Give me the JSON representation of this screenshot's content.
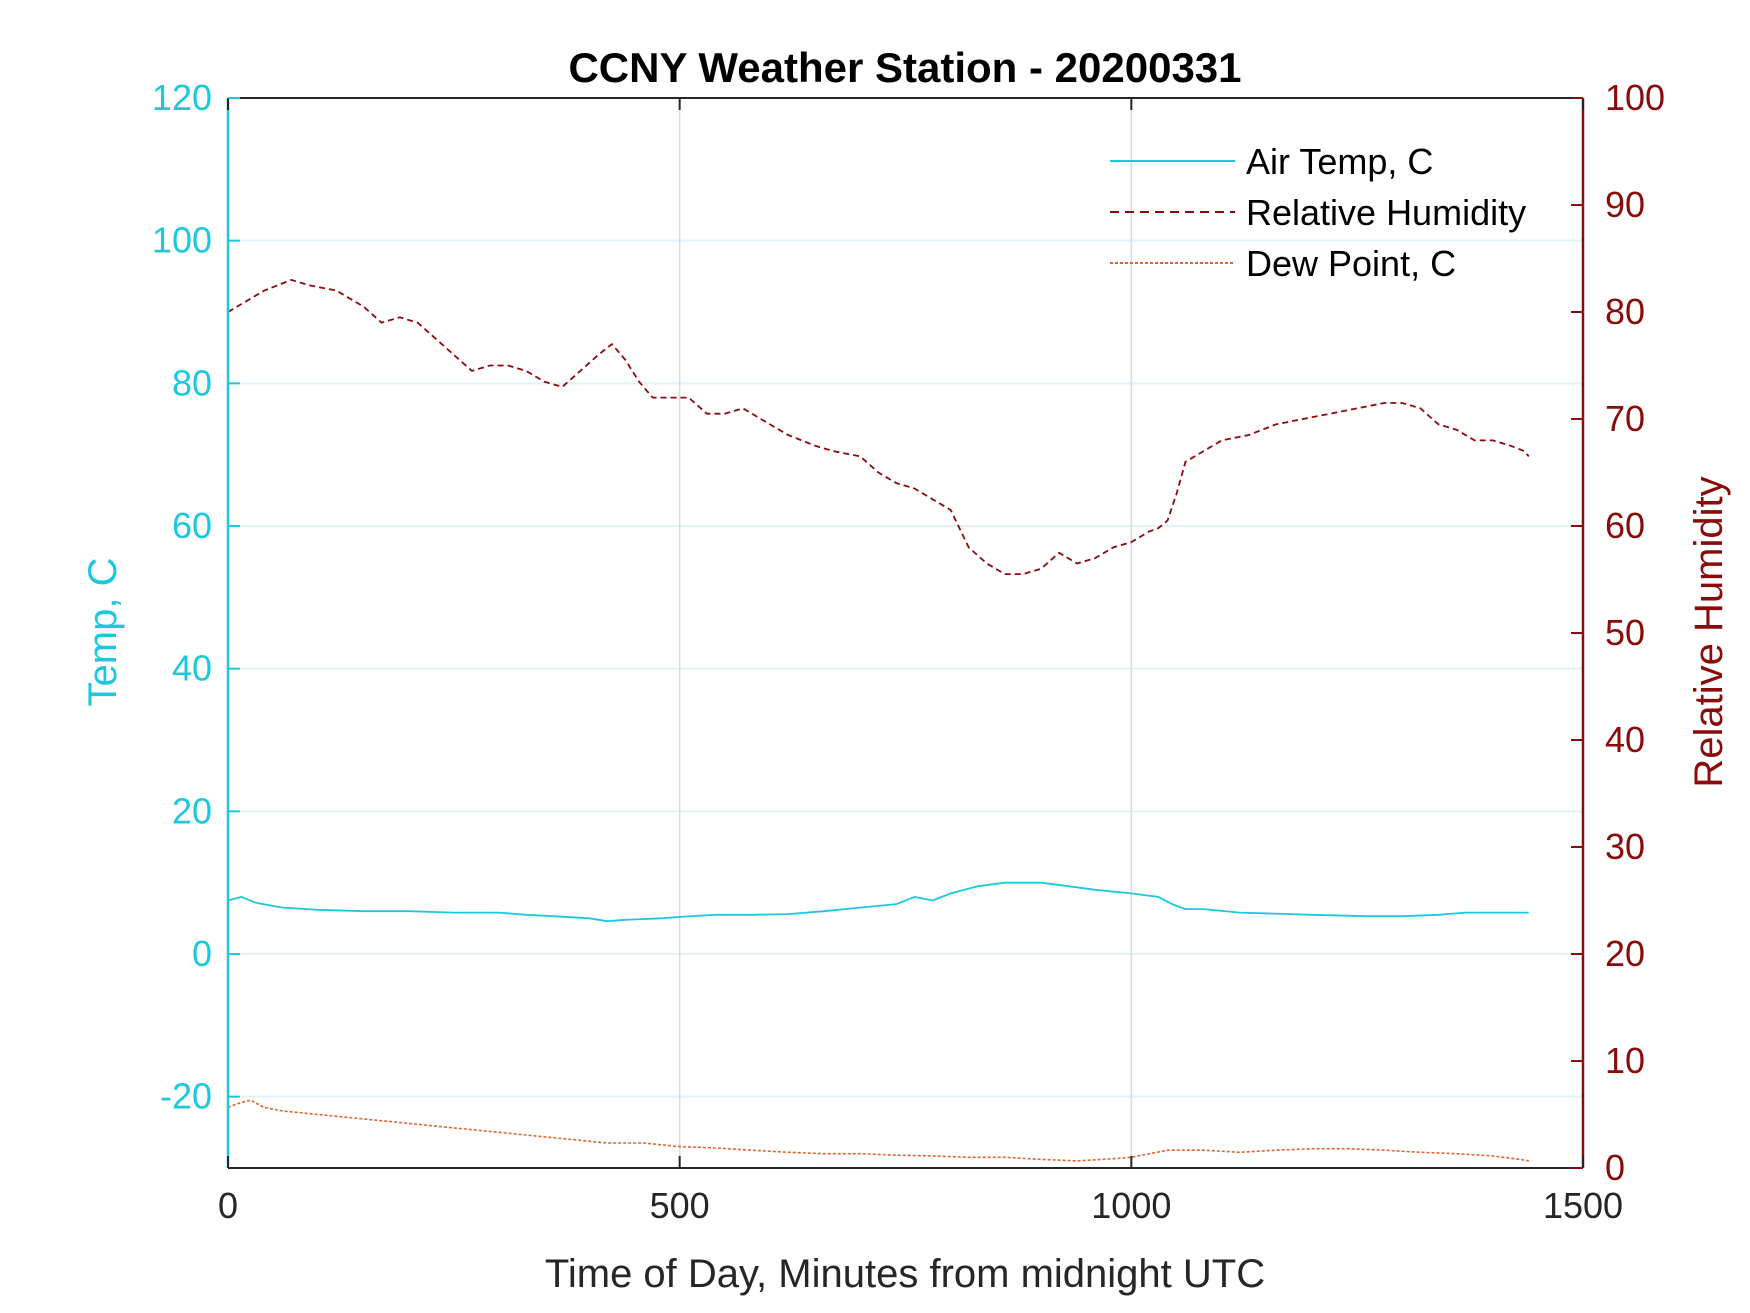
{
  "chart_data": {
    "type": "line",
    "title": "CCNY Weather Station - 20200331",
    "xlabel": "Time of Day, Minutes from midnight UTC",
    "ylabel_left": "Temp, C",
    "ylabel_right": "Relative Humidity",
    "xlim": [
      0,
      1500
    ],
    "ylim_left": [
      -30,
      120
    ],
    "ylim_right": [
      0,
      100
    ],
    "x_ticks": [
      "0",
      "500",
      "1000",
      "1500"
    ],
    "y_ticks_left": [
      "-20",
      "0",
      "20",
      "40",
      "60",
      "80",
      "100",
      "120"
    ],
    "y_ticks_right": [
      "0",
      "10",
      "20",
      "30",
      "40",
      "50",
      "60",
      "70",
      "80",
      "90",
      "100"
    ],
    "legend_position": "top-right",
    "colors": {
      "temp": "#1ec8dc",
      "humidity": "#8b0a0a",
      "dewpoint": "#e0652d",
      "axis": "#262626",
      "hgrid": "#dff3f8",
      "vgrid": "#d4dbe2"
    },
    "series": [
      {
        "name": "Air Temp, C",
        "axis": "left",
        "style": "solid",
        "x": [
          0,
          15,
          30,
          60,
          100,
          150,
          200,
          250,
          300,
          330,
          360,
          400,
          420,
          440,
          480,
          500,
          540,
          580,
          620,
          660,
          700,
          740,
          760,
          780,
          800,
          830,
          860,
          880,
          900,
          930,
          960,
          1000,
          1030,
          1045,
          1060,
          1080,
          1120,
          1200,
          1260,
          1300,
          1340,
          1370,
          1400,
          1420,
          1440
        ],
        "y": [
          7.5,
          8,
          7.2,
          6.5,
          6.2,
          6,
          6,
          5.8,
          5.8,
          5.5,
          5.3,
          5,
          4.6,
          4.8,
          5,
          5.2,
          5.5,
          5.5,
          5.6,
          6,
          6.5,
          7,
          8,
          7.5,
          8.5,
          9.5,
          10,
          10,
          10,
          9.5,
          9,
          8.5,
          8,
          7,
          6.3,
          6.3,
          5.8,
          5.5,
          5.3,
          5.3,
          5.5,
          5.8,
          5.8,
          5.8,
          5.8
        ]
      },
      {
        "name": "Relative Humidity",
        "axis": "right",
        "style": "dashed",
        "x": [
          0,
          20,
          40,
          70,
          90,
          120,
          150,
          170,
          190,
          210,
          230,
          250,
          270,
          290,
          310,
          330,
          350,
          370,
          390,
          410,
          425,
          440,
          455,
          470,
          490,
          510,
          530,
          550,
          570,
          600,
          620,
          650,
          670,
          700,
          720,
          740,
          760,
          780,
          800,
          820,
          840,
          860,
          880,
          900,
          920,
          940,
          960,
          980,
          1000,
          1020,
          1030,
          1040,
          1050,
          1060,
          1080,
          1100,
          1130,
          1160,
          1190,
          1220,
          1250,
          1280,
          1300,
          1320,
          1340,
          1360,
          1380,
          1400,
          1420,
          1435,
          1440
        ],
        "y": [
          80,
          81,
          82,
          83,
          82.5,
          82,
          80.5,
          79,
          79.5,
          79,
          77.5,
          76,
          74.5,
          75,
          75,
          74.5,
          73.5,
          73,
          74.5,
          76,
          77,
          75.5,
          73.5,
          72,
          72,
          72,
          70.5,
          70.5,
          71,
          69.5,
          68.5,
          67.5,
          67,
          66.5,
          65,
          64,
          63.5,
          62.5,
          61.5,
          58,
          56.5,
          55.5,
          55.5,
          56,
          57.5,
          56.5,
          57,
          58,
          58.5,
          59.5,
          59.8,
          60.5,
          63,
          66,
          67,
          68,
          68.5,
          69.5,
          70,
          70.5,
          71,
          71.5,
          71.5,
          71,
          69.5,
          69,
          68,
          68,
          67.5,
          67,
          66.5
        ]
      },
      {
        "name": "Dew Point, C",
        "axis": "left",
        "style": "dotted",
        "x": [
          0,
          10,
          25,
          40,
          60,
          100,
          140,
          180,
          220,
          260,
          300,
          340,
          380,
          420,
          460,
          500,
          540,
          580,
          620,
          660,
          700,
          740,
          780,
          820,
          860,
          900,
          940,
          980,
          1000,
          1020,
          1040,
          1080,
          1120,
          1160,
          1200,
          1240,
          1280,
          1320,
          1360,
          1400,
          1430,
          1440
        ],
        "y": [
          -21.5,
          -21,
          -20.5,
          -21.5,
          -22,
          -22.5,
          -23,
          -23.5,
          -24,
          -24.5,
          -25,
          -25.5,
          -26,
          -26.5,
          -26.5,
          -27,
          -27.2,
          -27.5,
          -27.8,
          -28,
          -28,
          -28.2,
          -28.3,
          -28.5,
          -28.5,
          -28.8,
          -29,
          -28.7,
          -28.5,
          -28,
          -27.5,
          -27.5,
          -27.8,
          -27.5,
          -27.3,
          -27.3,
          -27.5,
          -27.8,
          -28,
          -28.3,
          -28.8,
          -29
        ]
      }
    ]
  }
}
